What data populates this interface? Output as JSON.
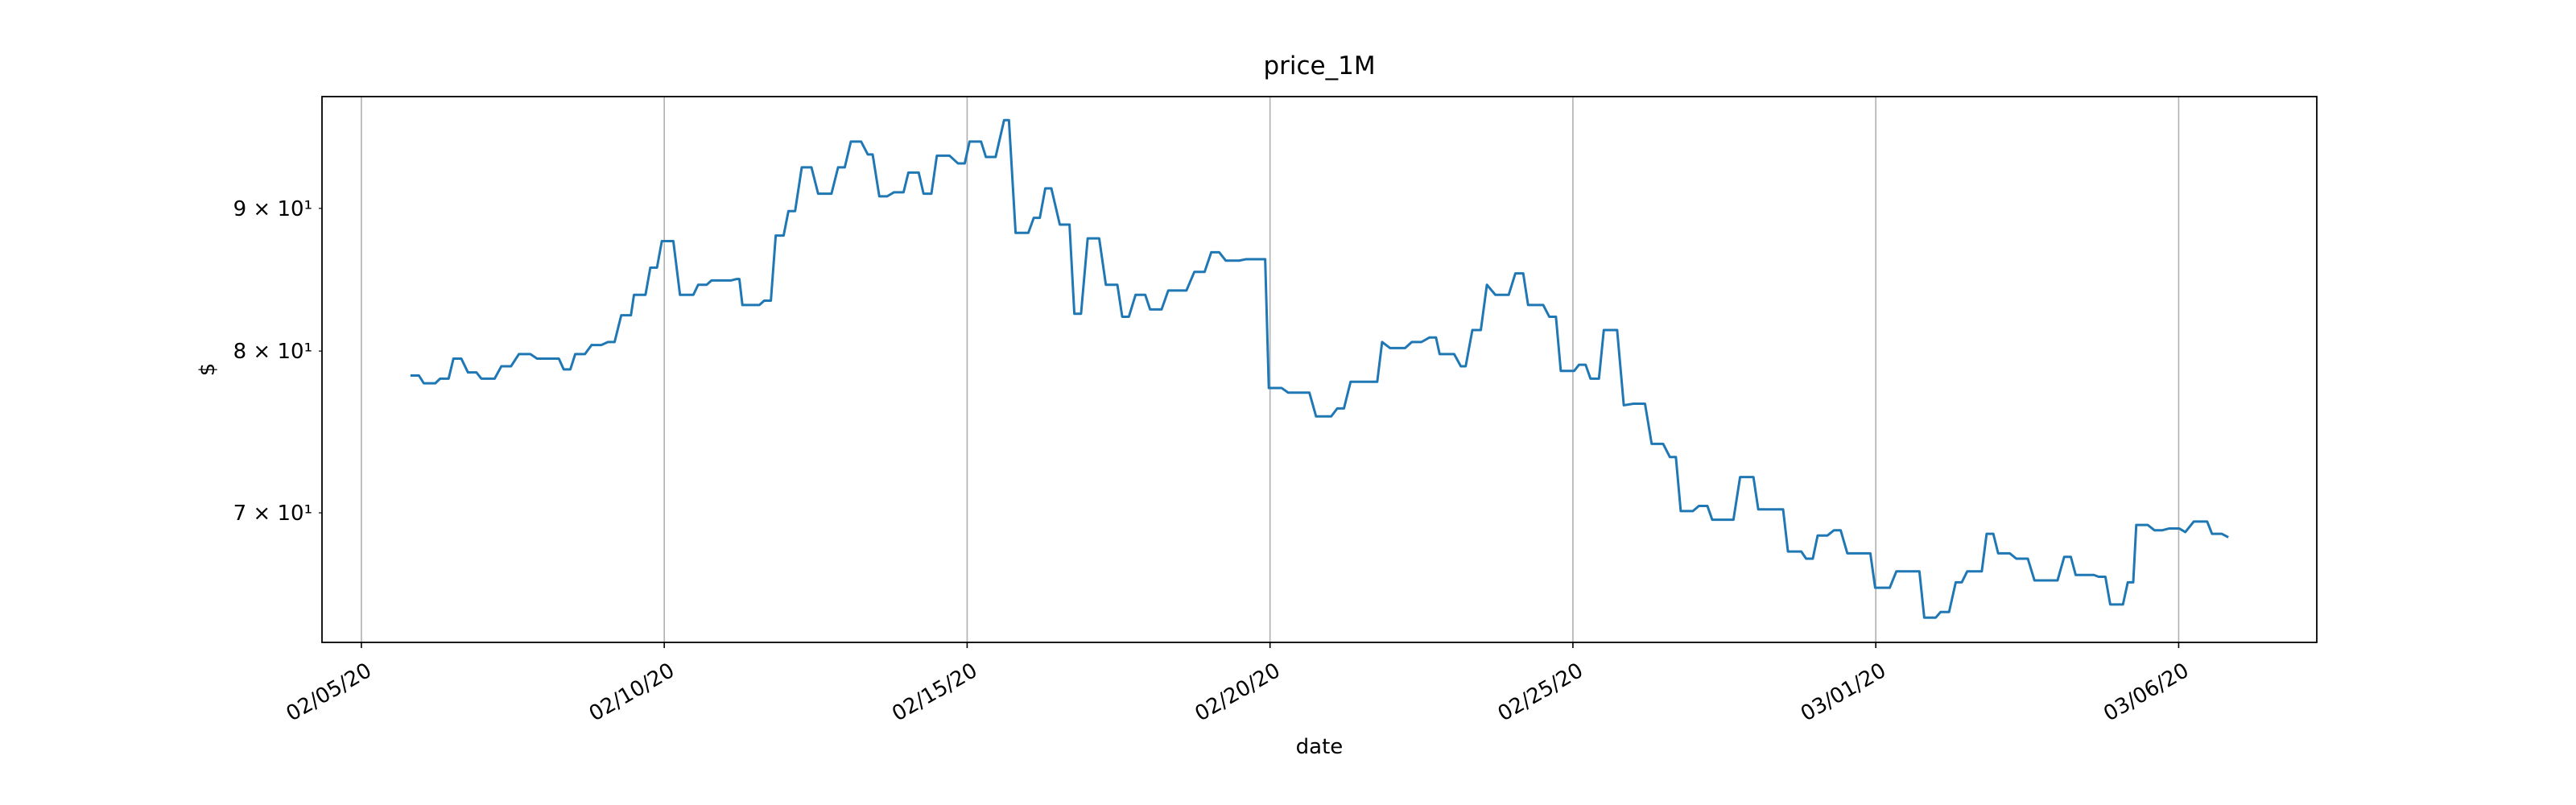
{
  "chart_data": {
    "type": "line",
    "title": "price_1M",
    "xlabel": "date",
    "ylabel": "$",
    "log_y": true,
    "grid": "x",
    "xlim": [
      -0.65,
      32.28
    ],
    "xticks": [
      {
        "value": 0,
        "label": "02/05/20"
      },
      {
        "value": 5,
        "label": "02/10/20"
      },
      {
        "value": 10,
        "label": "02/15/20"
      },
      {
        "value": 15,
        "label": "02/20/20"
      },
      {
        "value": 20,
        "label": "02/25/20"
      },
      {
        "value": 25,
        "label": "03/01/20"
      },
      {
        "value": 30,
        "label": "03/06/20"
      }
    ],
    "ylim": [
      62.9,
      98.7
    ],
    "yticks": [
      {
        "value": 70,
        "label": "7 × 10¹"
      },
      {
        "value": 80,
        "label": "8 × 10¹"
      },
      {
        "value": 90,
        "label": "9 × 10¹"
      }
    ],
    "color": "#1f77b4",
    "x": [
      0.81,
      0.95,
      1.03,
      1.22,
      1.3,
      1.44,
      1.52,
      1.65,
      1.76,
      1.9,
      1.98,
      2.2,
      2.31,
      2.47,
      2.6,
      2.79,
      2.9,
      3.04,
      3.12,
      3.26,
      3.34,
      3.45,
      3.53,
      3.69,
      3.8,
      3.96,
      4.07,
      4.18,
      4.29,
      4.45,
      4.5,
      4.69,
      4.77,
      4.88,
      4.96,
      5.15,
      5.26,
      5.48,
      5.56,
      5.7,
      5.78,
      6.1,
      6.19,
      6.24,
      6.29,
      6.57,
      6.65,
      6.76,
      6.84,
      6.97,
      7.05,
      7.16,
      7.27,
      7.43,
      7.54,
      7.76,
      7.87,
      7.98,
      8.08,
      8.25,
      8.36,
      8.44,
      8.55,
      8.68,
      8.79,
      8.95,
      9.03,
      9.2,
      9.28,
      9.41,
      9.5,
      9.71,
      9.85,
      9.96,
      10.04,
      10.23,
      10.31,
      10.47,
      10.61,
      10.69,
      10.8,
      11.01,
      11.1,
      11.2,
      11.29,
      11.39,
      11.53,
      11.69,
      11.77,
      11.88,
      11.99,
      12.18,
      12.29,
      12.48,
      12.56,
      12.67,
      12.78,
      12.94,
      13.02,
      13.21,
      13.32,
      13.62,
      13.75,
      13.92,
      14.03,
      14.16,
      14.27,
      14.49,
      14.6,
      14.92,
      14.98,
      15.19,
      15.3,
      15.65,
      15.76,
      16.01,
      16.11,
      16.22,
      16.33,
      16.77,
      16.85,
      16.98,
      17.23,
      17.34,
      17.5,
      17.63,
      17.74,
      17.8,
      18.04,
      18.15,
      18.23,
      18.34,
      18.48,
      18.58,
      18.72,
      18.94,
      19.05,
      19.18,
      19.26,
      19.51,
      19.61,
      19.72,
      19.8,
      20.02,
      20.1,
      20.21,
      20.29,
      20.43,
      20.51,
      20.73,
      20.84,
      21.0,
      21.19,
      21.3,
      21.49,
      21.6,
      21.7,
      21.78,
      21.98,
      22.08,
      22.22,
      22.3,
      22.65,
      22.76,
      22.98,
      23.06,
      23.47,
      23.55,
      23.77,
      23.85,
      23.96,
      24.04,
      24.2,
      24.31,
      24.42,
      24.53,
      24.91,
      24.99,
      25.23,
      25.34,
      25.72,
      25.8,
      25.99,
      26.07,
      26.21,
      26.32,
      26.42,
      26.51,
      26.75,
      26.83,
      26.94,
      27.02,
      27.21,
      27.32,
      27.51,
      27.62,
      28.0,
      28.11,
      28.22,
      28.3,
      28.6,
      28.68,
      28.79,
      28.87,
      29.08,
      29.16,
      29.25,
      29.3,
      29.49,
      29.6,
      29.73,
      29.84,
      30.01,
      30.11,
      30.25,
      30.47,
      30.55,
      30.71,
      30.82
    ],
    "values": [
      78.4,
      78.4,
      77.9,
      77.9,
      78.2,
      78.2,
      79.5,
      79.5,
      78.6,
      78.6,
      78.2,
      78.2,
      79.0,
      79.0,
      79.8,
      79.8,
      79.5,
      79.5,
      79.5,
      79.5,
      78.8,
      78.8,
      79.8,
      79.8,
      80.4,
      80.4,
      80.6,
      80.6,
      82.4,
      82.4,
      83.8,
      83.8,
      85.7,
      85.7,
      87.6,
      87.6,
      83.8,
      83.8,
      84.5,
      84.5,
      84.8,
      84.8,
      84.9,
      84.9,
      83.1,
      83.1,
      83.4,
      83.4,
      88.0,
      88.0,
      89.8,
      89.8,
      93.1,
      93.1,
      91.1,
      91.1,
      93.1,
      93.1,
      95.1,
      95.1,
      94.1,
      94.1,
      90.9,
      90.9,
      91.2,
      91.2,
      92.7,
      92.7,
      91.1,
      91.1,
      94.0,
      94.0,
      93.4,
      93.4,
      95.1,
      95.1,
      93.9,
      93.9,
      96.8,
      96.8,
      88.2,
      88.2,
      89.3,
      89.3,
      91.5,
      91.5,
      88.8,
      88.8,
      82.5,
      82.5,
      87.8,
      87.8,
      84.5,
      84.5,
      82.3,
      82.3,
      83.8,
      83.8,
      82.8,
      82.8,
      84.1,
      84.1,
      85.4,
      85.4,
      86.8,
      86.8,
      86.2,
      86.2,
      86.3,
      86.3,
      77.6,
      77.6,
      77.3,
      77.3,
      75.8,
      75.8,
      76.3,
      76.3,
      78.0,
      78.0,
      80.6,
      80.2,
      80.2,
      80.6,
      80.6,
      80.9,
      80.9,
      79.8,
      79.8,
      79.0,
      79.0,
      81.4,
      81.4,
      84.5,
      83.8,
      83.8,
      85.3,
      85.3,
      83.1,
      83.1,
      82.3,
      82.3,
      78.7,
      78.7,
      79.1,
      79.1,
      78.2,
      78.2,
      81.4,
      81.4,
      76.5,
      76.6,
      76.6,
      74.1,
      74.1,
      73.3,
      73.3,
      70.1,
      70.1,
      70.4,
      70.4,
      69.6,
      69.6,
      72.1,
      72.1,
      70.2,
      70.2,
      67.8,
      67.8,
      67.4,
      67.4,
      68.7,
      68.7,
      69.0,
      69.0,
      67.7,
      67.7,
      65.8,
      65.8,
      66.7,
      66.7,
      64.2,
      64.2,
      64.5,
      64.5,
      66.1,
      66.1,
      66.7,
      66.7,
      68.8,
      68.8,
      67.7,
      67.7,
      67.4,
      67.4,
      66.2,
      66.2,
      67.5,
      67.5,
      66.5,
      66.5,
      66.4,
      66.4,
      64.9,
      64.9,
      66.1,
      66.1,
      69.3,
      69.3,
      69.0,
      69.0,
      69.1,
      69.1,
      68.9,
      69.5,
      69.5,
      68.8,
      68.8,
      68.6
    ]
  }
}
